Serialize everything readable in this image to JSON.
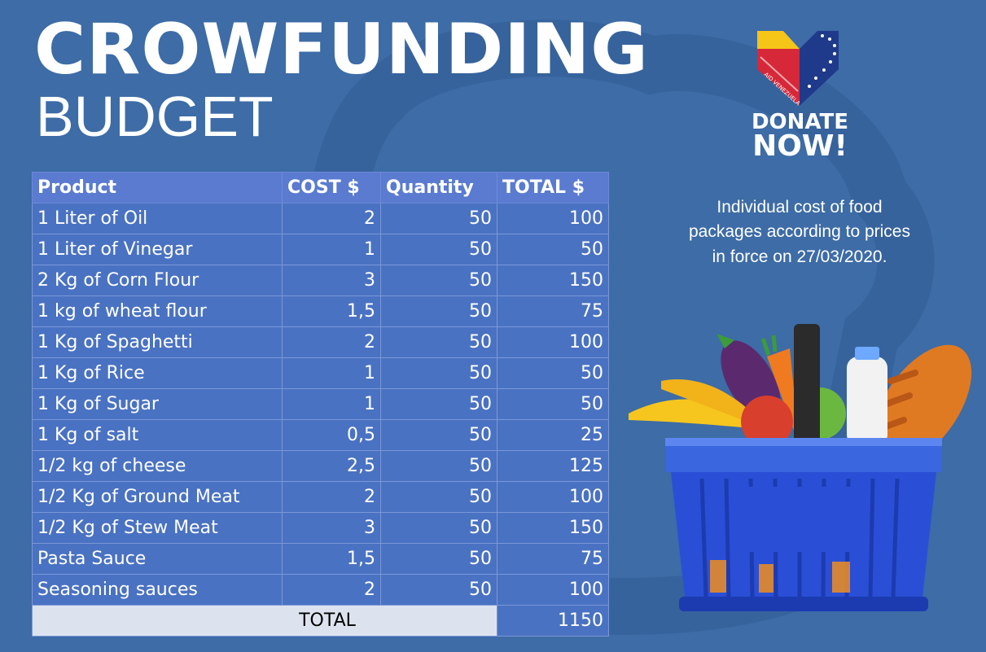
{
  "header": {
    "title": "CROWFUNDING",
    "subtitle": "BUDGET"
  },
  "table": {
    "columns": [
      "Product",
      "COST $",
      "Quantity",
      "TOTAL $"
    ],
    "rows": [
      {
        "product": "1 Liter of Oil",
        "cost": "2",
        "quantity": "50",
        "total": "100"
      },
      {
        "product": "1 Liter of Vinegar",
        "cost": "1",
        "quantity": "50",
        "total": "50"
      },
      {
        "product": "2 Kg of Corn Flour",
        "cost": "3",
        "quantity": "50",
        "total": "150"
      },
      {
        "product": "1 kg of wheat flour",
        "cost": "1,5",
        "quantity": "50",
        "total": "75"
      },
      {
        "product": "1 Kg of Spaghetti",
        "cost": "2",
        "quantity": "50",
        "total": "100"
      },
      {
        "product": "1 Kg of Rice",
        "cost": "1",
        "quantity": "50",
        "total": "50"
      },
      {
        "product": "1 Kg of Sugar",
        "cost": "1",
        "quantity": "50",
        "total": "50"
      },
      {
        "product": "1 Kg of salt",
        "cost": "0,5",
        "quantity": "50",
        "total": "25"
      },
      {
        "product": "1/2 kg of cheese",
        "cost": "2,5",
        "quantity": "50",
        "total": "125"
      },
      {
        "product": "1/2 Kg of Ground Meat",
        "cost": "2",
        "quantity": "50",
        "total": "100"
      },
      {
        "product": "1/2 Kg of Stew Meat",
        "cost": "3",
        "quantity": "50",
        "total": "150"
      },
      {
        "product": "Pasta Sauce",
        "cost": "1,5",
        "quantity": "50",
        "total": "75"
      },
      {
        "product": "Seasoning sauces",
        "cost": "2",
        "quantity": "50",
        "total": "100"
      }
    ],
    "total_label": "TOTAL",
    "total_value": "1150"
  },
  "logo": {
    "text": "AID VENEZUELA",
    "icon": "heart-flag-icon"
  },
  "cta": {
    "line1": "DONATE",
    "line2": "NOW!"
  },
  "note": {
    "line1": "Individual cost of food",
    "line2": "packages according to prices",
    "line3": "in force on 27/03/2020."
  },
  "illustration": {
    "icon": "grocery-basket-icon"
  },
  "colors": {
    "background": "#3d6ca6",
    "table_header": "#5a7bd0",
    "table_row": "#4a72c2",
    "total_cell": "#dde3ee",
    "logo_yellow": "#f5c518",
    "logo_blue": "#1f3a8a",
    "logo_red": "#d62839",
    "basket_blue": "#2a4fd6"
  }
}
